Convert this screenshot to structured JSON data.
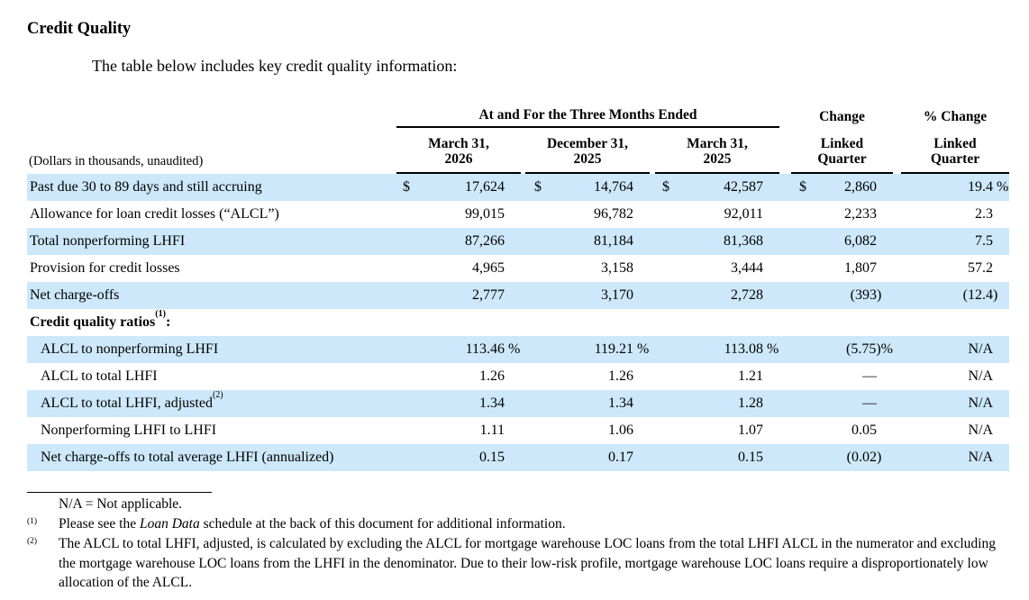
{
  "colors": {
    "row_highlight": "#cce8fa",
    "text": "#000000"
  },
  "page": {
    "title": "Credit Quality",
    "intro": "The table below includes key credit quality information:"
  },
  "table": {
    "span_header": "At and For the Three Months Ended",
    "change_header": "Change",
    "pct_change_header": "% Change",
    "units_note": "(Dollars in thousands, unaudited)",
    "columns": [
      {
        "line1": "March 31,",
        "line2": "2026"
      },
      {
        "line1": "December 31,",
        "line2": "2025"
      },
      {
        "line1": "March 31,",
        "line2": "2025"
      },
      {
        "line1": "Linked",
        "line2": "Quarter"
      },
      {
        "line1": "Linked",
        "line2": "Quarter"
      }
    ],
    "rows": [
      {
        "type": "data",
        "shade": true,
        "label": "Past due 30 to 89 days and still accruing",
        "cells": [
          {
            "pre": "$",
            "v": "17,624"
          },
          {
            "pre": "$",
            "v": "14,764"
          },
          {
            "pre": "$",
            "v": "42,587"
          },
          {
            "pre": "$",
            "v": "2,860"
          },
          {
            "v": "19.4 %",
            "hang": 2
          }
        ]
      },
      {
        "type": "data",
        "shade": false,
        "label": "Allowance for loan credit losses (“ALCL”)",
        "cells": [
          {
            "v": "99,015"
          },
          {
            "v": "96,782"
          },
          {
            "v": "92,011"
          },
          {
            "v": "2,233"
          },
          {
            "v": "2.3"
          }
        ]
      },
      {
        "type": "data",
        "shade": true,
        "label": "Total nonperforming LHFI",
        "cells": [
          {
            "v": "87,266"
          },
          {
            "v": "81,184"
          },
          {
            "v": "81,368"
          },
          {
            "v": "6,082"
          },
          {
            "v": "7.5"
          }
        ]
      },
      {
        "type": "data",
        "shade": false,
        "label": "Provision for credit losses",
        "cells": [
          {
            "v": "4,965"
          },
          {
            "v": "3,158"
          },
          {
            "v": "3,444"
          },
          {
            "v": "1,807"
          },
          {
            "v": "57.2"
          }
        ]
      },
      {
        "type": "data",
        "shade": true,
        "label": "Net charge-offs",
        "cells": [
          {
            "v": "2,777"
          },
          {
            "v": "3,170"
          },
          {
            "v": "2,728"
          },
          {
            "v": "(393)",
            "hang": 1
          },
          {
            "v": "(12.4)",
            "hang": 1
          }
        ]
      },
      {
        "type": "section",
        "shade": false,
        "label": "Credit quality ratios",
        "sup": "(1)",
        "after": ":"
      },
      {
        "type": "data",
        "shade": true,
        "indent": true,
        "label": "ALCL to nonperforming LHFI",
        "cells": [
          {
            "v": "113.46 %",
            "hang": 2
          },
          {
            "v": "119.21 %",
            "hang": 2
          },
          {
            "v": "113.08 %",
            "hang": 2
          },
          {
            "v": "(5.75)%",
            "hang": 2
          },
          {
            "v": "N/A"
          }
        ]
      },
      {
        "type": "data",
        "shade": false,
        "indent": true,
        "label": "ALCL to total LHFI",
        "cells": [
          {
            "v": "1.26"
          },
          {
            "v": "1.26"
          },
          {
            "v": "1.21"
          },
          {
            "v": "—"
          },
          {
            "v": "N/A"
          }
        ]
      },
      {
        "type": "data",
        "shade": true,
        "indent": true,
        "label": "ALCL to total LHFI, adjusted",
        "sup": "(2)",
        "cells": [
          {
            "v": "1.34"
          },
          {
            "v": "1.34"
          },
          {
            "v": "1.28"
          },
          {
            "v": "—"
          },
          {
            "v": "N/A"
          }
        ]
      },
      {
        "type": "data",
        "shade": false,
        "indent": true,
        "label": "Nonperforming LHFI to LHFI",
        "cells": [
          {
            "v": "1.11"
          },
          {
            "v": "1.06"
          },
          {
            "v": "1.07"
          },
          {
            "v": "0.05"
          },
          {
            "v": "N/A"
          }
        ]
      },
      {
        "type": "data",
        "shade": true,
        "indent": true,
        "label": "Net charge-offs to total average LHFI (annualized)",
        "cells": [
          {
            "v": "0.15"
          },
          {
            "v": "0.17"
          },
          {
            "v": "0.15"
          },
          {
            "v": "(0.02)",
            "hang": 1
          },
          {
            "v": "N/A"
          }
        ]
      }
    ]
  },
  "footnotes": {
    "na_note": "N/A = Not applicable.",
    "items": [
      {
        "marker": "(1)",
        "pre": "Please see the ",
        "italic": "Loan Data",
        "post": " schedule at the back of this document for additional information."
      },
      {
        "marker": "(2)",
        "text": "The ALCL to total LHFI, adjusted, is calculated by excluding the ALCL for mortgage warehouse LOC loans from the total LHFI ALCL in the numerator and excluding the mortgage warehouse LOC loans from the LHFI in the denominator. Due to their low-risk profile, mortgage warehouse LOC loans require a disproportionately low allocation of the ALCL."
      }
    ]
  }
}
